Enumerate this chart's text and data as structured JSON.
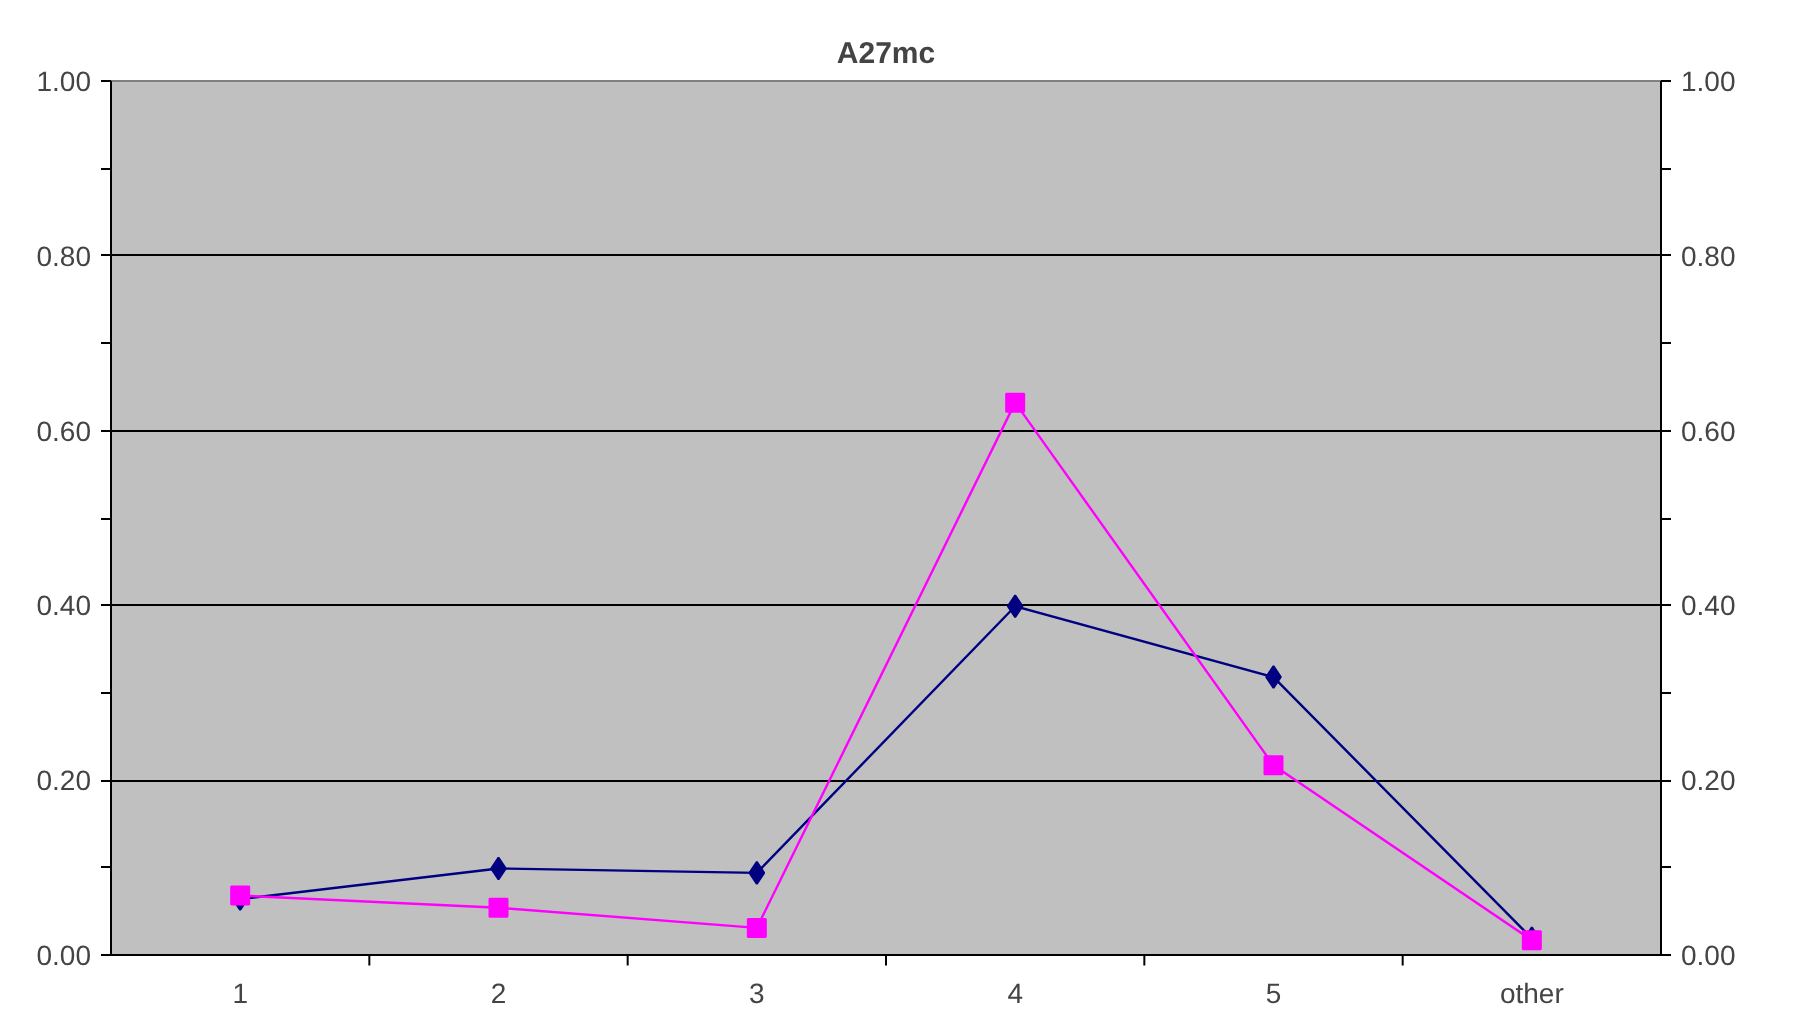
{
  "chart_data": {
    "type": "line",
    "title": "A27mc",
    "categories": [
      "1",
      "2",
      "3",
      "4",
      "5",
      "other"
    ],
    "series": [
      {
        "color": "#000080",
        "marker": "diamond",
        "values": [
          0.064,
          0.099,
          0.094,
          0.399,
          0.318,
          0.019
        ]
      },
      {
        "color": "#ff00ff",
        "marker": "square",
        "values": [
          0.068,
          0.054,
          0.031,
          0.632,
          0.217,
          0.017
        ]
      }
    ],
    "ylim": [
      0,
      1
    ],
    "yticks": [
      {
        "value": 0,
        "label": "0.00"
      },
      {
        "value": 0.1,
        "label": null
      },
      {
        "value": 0.2,
        "label": "0.20"
      },
      {
        "value": 0.3,
        "label": null
      },
      {
        "value": 0.4,
        "label": "0.40"
      },
      {
        "value": 0.5,
        "label": null
      },
      {
        "value": 0.6,
        "label": "0.60"
      },
      {
        "value": 0.7,
        "label": null
      },
      {
        "value": 0.8,
        "label": "0.80"
      },
      {
        "value": 0.9,
        "label": null
      },
      {
        "value": 1,
        "label": "1.00"
      }
    ],
    "y2lim": [
      0,
      1
    ],
    "y2ticks": [
      {
        "value": 0,
        "label": "0.00"
      },
      {
        "value": 0.1,
        "label": null
      },
      {
        "value": 0.2,
        "label": "0.20"
      },
      {
        "value": 0.3,
        "label": null
      },
      {
        "value": 0.4,
        "label": "0.40"
      },
      {
        "value": 0.5,
        "label": null
      },
      {
        "value": 0.6,
        "label": "0.60"
      },
      {
        "value": 0.7,
        "label": null
      },
      {
        "value": 0.8,
        "label": "0.80"
      },
      {
        "value": 0.9,
        "label": null
      },
      {
        "value": 1,
        "label": "1.00"
      }
    ],
    "grid": "y"
  }
}
